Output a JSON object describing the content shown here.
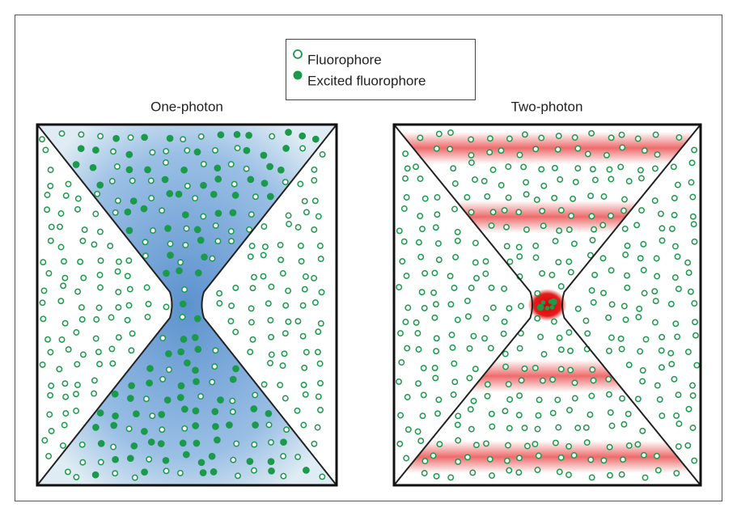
{
  "legend": {
    "items": [
      {
        "label": "Fluorophore"
      },
      {
        "label": "Excited fluorophore"
      }
    ]
  },
  "panels": [
    {
      "title": "One-photon"
    },
    {
      "title": "Two-photon"
    }
  ]
}
